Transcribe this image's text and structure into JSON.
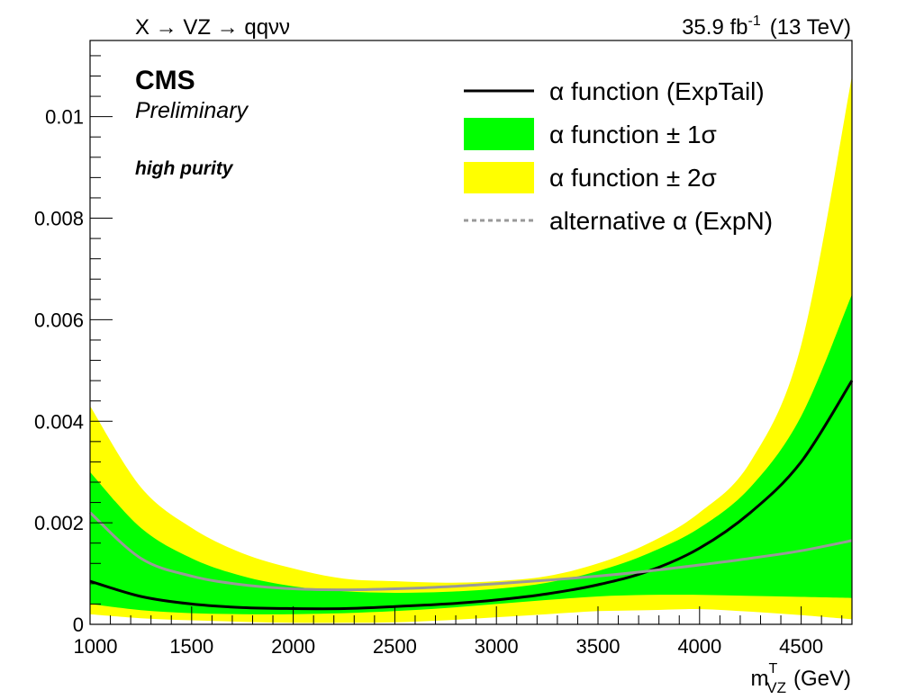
{
  "header": {
    "process": "X → VZ → qqνν",
    "lumi_value": "35.9 fb",
    "lumi_exp": "-1",
    "energy": "(13 TeV)"
  },
  "labels": {
    "experiment": "CMS",
    "status": "Preliminary",
    "category": "high purity"
  },
  "colors": {
    "band2": "#ffff00",
    "band1": "#00ff00",
    "nominal": "#000000",
    "alternative": "#999999"
  },
  "chart_data": {
    "type": "line",
    "xlabel_main": "m",
    "xlabel_sup": "T",
    "xlabel_sub": "VZ",
    "xlabel_unit": "(GeV)",
    "ylabel": "",
    "xlim": [
      1000,
      4750
    ],
    "ylim": [
      0,
      0.0115
    ],
    "x_ticks": [
      1000,
      1500,
      2000,
      2500,
      3000,
      3500,
      4000,
      4500
    ],
    "x_tick_labels": [
      "1000",
      "1500",
      "2000",
      "2500",
      "3000",
      "3500",
      "4000",
      "4500"
    ],
    "y_ticks": [
      0,
      0.002,
      0.004,
      0.006,
      0.008,
      0.01
    ],
    "y_tick_labels": [
      "0",
      "0.002",
      "0.004",
      "0.006",
      "0.008",
      "0.01"
    ],
    "x": [
      1000,
      1250,
      1500,
      1750,
      2000,
      2250,
      2500,
      2750,
      3000,
      3250,
      3500,
      3750,
      4000,
      4250,
      4500,
      4750
    ],
    "series": [
      {
        "name": "α function (ExpTail)",
        "style": "solid",
        "values": [
          0.00085,
          0.00055,
          0.0004,
          0.00033,
          0.00031,
          0.00031,
          0.00035,
          0.0004,
          0.00048,
          0.0006,
          0.00078,
          0.00105,
          0.0015,
          0.0022,
          0.0032,
          0.0048
        ]
      },
      {
        "name": "alternative α (ExpN)",
        "style": "dashed",
        "values": [
          0.0022,
          0.0013,
          0.00095,
          0.00078,
          0.0007,
          0.00068,
          0.0007,
          0.00074,
          0.0008,
          0.00087,
          0.00095,
          0.00105,
          0.00117,
          0.0013,
          0.00145,
          0.00165
        ]
      }
    ],
    "bands": [
      {
        "name": "α function ± 2σ",
        "lower": [
          0.0002,
          0.00012,
          8e-05,
          5e-05,
          3e-05,
          3e-05,
          4e-05,
          8e-05,
          0.00014,
          0.0002,
          0.00026,
          0.00028,
          0.0003,
          0.00025,
          0.00018,
          0.0001
        ],
        "upper": [
          0.0043,
          0.0027,
          0.0019,
          0.0014,
          0.0011,
          0.0009,
          0.00085,
          0.00082,
          0.00085,
          0.00095,
          0.0012,
          0.0016,
          0.0022,
          0.0032,
          0.0055,
          0.0108
        ]
      },
      {
        "name": "α function ± 1σ",
        "lower": [
          0.0004,
          0.00028,
          0.00022,
          0.0002,
          0.0002,
          0.00022,
          0.00026,
          0.00032,
          0.0004,
          0.00048,
          0.00055,
          0.00058,
          0.00058,
          0.00056,
          0.00054,
          0.00052
        ],
        "upper": [
          0.003,
          0.0019,
          0.0013,
          0.00095,
          0.00075,
          0.00065,
          0.00062,
          0.00064,
          0.0007,
          0.00082,
          0.00105,
          0.0014,
          0.0019,
          0.0027,
          0.0041,
          0.0065
        ]
      }
    ],
    "legend_position": "top-right",
    "legend": [
      {
        "label": "α function (ExpTail)",
        "kind": "line-solid"
      },
      {
        "label": "α function ± 1σ",
        "kind": "fill-1sigma"
      },
      {
        "label": "α function ± 2σ",
        "kind": "fill-2sigma"
      },
      {
        "label": "alternative α (ExpN)",
        "kind": "line-dashed"
      }
    ],
    "grid": false
  }
}
